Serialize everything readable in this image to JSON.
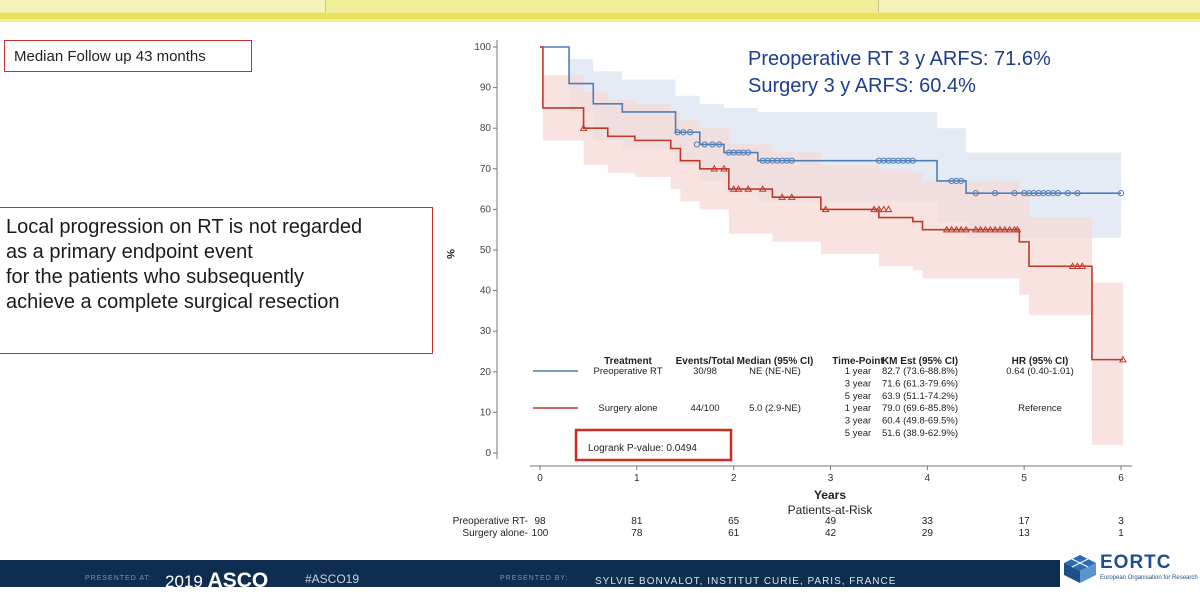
{
  "top_box": {
    "text": "Median Follow up 43 months"
  },
  "left_box": {
    "lines": [
      "Local progression on RT is not regarded",
      "as a primary endpoint event",
      "for the patients who subsequently",
      "achieve a complete surgical resection"
    ]
  },
  "arfs": {
    "line1": "Preoperative RT 3 y ARFS: 71.6%",
    "line2": "Surgery 3 y ARFS: 60.4%"
  },
  "colors": {
    "rt": "#4f7fb8",
    "surgery": "#c0392b",
    "rt_ci": "#dbe4f2",
    "surgery_ci": "#f6d9d6",
    "highlight_box": "#d12a1f",
    "arfs_text": "#1e3d8f"
  },
  "chart_data": {
    "type": "line",
    "subtype": "kaplan-meier",
    "title": "",
    "xlabel": "Years",
    "ylabel": "%",
    "xlim": [
      0,
      6
    ],
    "ylim": [
      0,
      100
    ],
    "xticks": [
      "0",
      "1",
      "2",
      "3",
      "4",
      "5",
      "6"
    ],
    "yticks": [
      "0",
      "10",
      "20",
      "30",
      "40",
      "50",
      "60",
      "70",
      "80",
      "90",
      "100"
    ],
    "series": [
      {
        "name": "Preoperative RT",
        "x": [
          0,
          0.3,
          0.3,
          0.55,
          0.55,
          0.85,
          0.85,
          1.4,
          1.4,
          1.65,
          1.65,
          1.9,
          1.9,
          2.25,
          2.25,
          4.1,
          4.1,
          4.4,
          4.4,
          6
        ],
        "y": [
          100,
          100,
          91,
          91,
          86,
          86,
          84,
          84,
          79,
          79,
          76,
          76,
          74,
          74,
          72,
          72,
          67,
          67,
          64,
          64
        ],
        "ci_upper": [
          100,
          100,
          97,
          97,
          94,
          94,
          92,
          92,
          88,
          88,
          86,
          86,
          85,
          85,
          84,
          84,
          80,
          80,
          74,
          74
        ],
        "ci_lower": [
          100,
          100,
          84,
          84,
          77,
          77,
          75,
          75,
          71,
          71,
          67,
          67,
          64,
          64,
          62,
          62,
          57,
          57,
          53,
          53
        ],
        "censored_x": [
          1.42,
          1.48,
          1.55,
          1.62,
          1.7,
          1.78,
          1.85,
          1.95,
          2.0,
          2.05,
          2.1,
          2.15,
          2.3,
          2.35,
          2.4,
          2.45,
          2.5,
          2.55,
          2.6,
          3.5,
          3.55,
          3.6,
          3.65,
          3.7,
          3.75,
          3.8,
          3.85,
          4.25,
          4.3,
          4.35,
          4.5,
          4.7,
          4.9,
          5.0,
          5.05,
          5.1,
          5.15,
          5.2,
          5.25,
          5.3,
          5.35,
          5.45,
          5.55,
          6.0
        ],
        "censored_y": [
          79,
          79,
          79,
          76,
          76,
          76,
          76,
          74,
          74,
          74,
          74,
          74,
          72,
          72,
          72,
          72,
          72,
          72,
          72,
          72,
          72,
          72,
          72,
          72,
          72,
          72,
          72,
          67,
          67,
          67,
          64,
          64,
          64,
          64,
          64,
          64,
          64,
          64,
          64,
          64,
          64,
          64,
          64,
          64
        ]
      },
      {
        "name": "Surgery alone",
        "x": [
          0,
          0.03,
          0.03,
          0.45,
          0.45,
          0.7,
          0.7,
          0.98,
          0.98,
          1.35,
          1.35,
          1.45,
          1.45,
          1.65,
          1.65,
          1.95,
          1.95,
          2.4,
          2.4,
          2.9,
          2.9,
          3.5,
          3.5,
          3.85,
          3.85,
          3.95,
          3.95,
          4.95,
          4.95,
          5.05,
          5.05,
          5.7,
          5.7,
          6.02
        ],
        "y": [
          100,
          100,
          85,
          85,
          80,
          80,
          78,
          78,
          77,
          77,
          75,
          75,
          72,
          72,
          70,
          70,
          65,
          65,
          63,
          63,
          60,
          60,
          58,
          58,
          57,
          57,
          55,
          55,
          52,
          52,
          46,
          46,
          23,
          23
        ],
        "ci_upper": [
          100,
          100,
          93,
          93,
          89,
          89,
          87,
          87,
          86,
          86,
          84,
          84,
          82,
          82,
          80,
          80,
          76,
          76,
          74,
          74,
          71,
          71,
          70,
          70,
          69,
          69,
          67,
          67,
          64,
          64,
          58,
          58,
          42,
          42
        ],
        "ci_lower": [
          100,
          100,
          77,
          77,
          71,
          71,
          69,
          69,
          68,
          68,
          65,
          65,
          62,
          62,
          60,
          60,
          54,
          54,
          52,
          52,
          49,
          49,
          46,
          46,
          45,
          45,
          43,
          43,
          39,
          39,
          34,
          34,
          2,
          2
        ],
        "censored_x": [
          0.45,
          1.8,
          1.9,
          2.0,
          2.05,
          2.15,
          2.3,
          2.5,
          2.6,
          2.95,
          3.45,
          3.5,
          3.55,
          3.6,
          4.2,
          4.25,
          4.3,
          4.35,
          4.4,
          4.5,
          4.55,
          4.6,
          4.65,
          4.7,
          4.75,
          4.8,
          4.85,
          4.9,
          4.93,
          5.5,
          5.55,
          5.6,
          6.02
        ],
        "censored_y": [
          80,
          70,
          70,
          65,
          65,
          65,
          65,
          63,
          63,
          60,
          60,
          60,
          60,
          60,
          55,
          55,
          55,
          55,
          55,
          55,
          55,
          55,
          55,
          55,
          55,
          55,
          55,
          55,
          55,
          46,
          46,
          46,
          23
        ]
      }
    ],
    "legend_table": {
      "headers": [
        "Treatment",
        "Events/Total",
        "Median (95% CI)",
        "Time-Point",
        "KM Est (95% CI)",
        "HR (95% CI)"
      ],
      "groups": [
        {
          "treatment": "Preoperative RT",
          "events": "30/98",
          "median": "NE (NE-NE)",
          "hr": "0.64 (0.40-1.01)",
          "rows": [
            {
              "time": "1 year",
              "km": "82.7 (73.6-88.8%)"
            },
            {
              "time": "3 year",
              "km": "71.6 (61.3-79.6%)"
            },
            {
              "time": "5 year",
              "km": "63.9 (51.1-74.2%)"
            }
          ]
        },
        {
          "treatment": "Surgery alone",
          "events": "44/100",
          "median": "5.0 (2.9-NE)",
          "hr": "Reference",
          "rows": [
            {
              "time": "1 year",
              "km": "79.0 (69.6-85.8%)"
            },
            {
              "time": "3 year",
              "km": "60.4 (49.8-69.5%)"
            },
            {
              "time": "5 year",
              "km": "51.6 (38.9-62.9%)"
            }
          ]
        }
      ],
      "logrank": "Logrank P-value: 0.0494"
    },
    "at_risk": {
      "title": "Patients-at-Risk",
      "rows": [
        {
          "label": "Preoperative RT-",
          "values": [
            "98",
            "81",
            "65",
            "49",
            "33",
            "17",
            "3"
          ]
        },
        {
          "label": "Surgery alone-",
          "values": [
            "100",
            "78",
            "61",
            "42",
            "29",
            "13",
            "1"
          ]
        }
      ]
    }
  },
  "footer": {
    "presented_at": "PRESENTED AT:",
    "year": "2019",
    "asco": "ASCO",
    "tag": "#ASCO19",
    "presented_by": "PRESENTED BY:",
    "affiliation": "SYLVIE BONVALOT, INSTITUT CURIE, PARIS, FRANCE"
  },
  "logo": {
    "name": "EORTC",
    "subtitle": "European Organisation for Research"
  }
}
